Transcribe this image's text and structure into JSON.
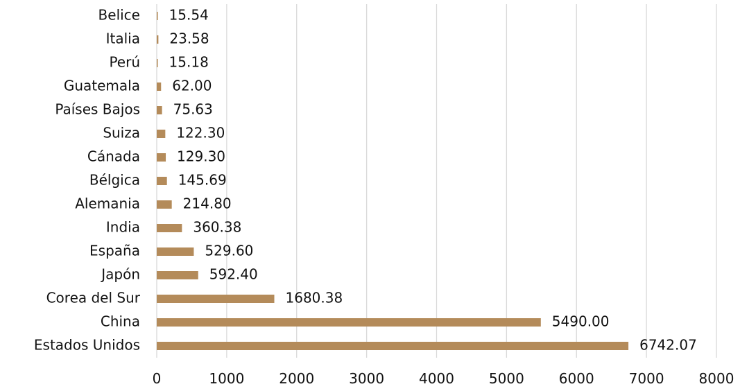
{
  "chart_data": {
    "type": "bar",
    "orientation": "horizontal",
    "title": "",
    "xlabel": "",
    "ylabel": "",
    "xlim": [
      0,
      8000
    ],
    "xticks": [
      0,
      1000,
      2000,
      3000,
      4000,
      5000,
      6000,
      7000,
      8000
    ],
    "grid": "vertical",
    "bar_color": "#b48b5a",
    "grid_color": "#d9d9d9",
    "categories": [
      "Belice",
      "Italia",
      "Perú",
      "Guatemala",
      "Países Bajos",
      "Suiza",
      "Cánada",
      "Bélgica",
      "Alemania",
      "India",
      "España",
      "Japón",
      "Corea del Sur",
      "China",
      "Estados Unidos"
    ],
    "values": [
      15.54,
      23.58,
      15.18,
      62.0,
      75.63,
      122.3,
      129.3,
      145.69,
      214.8,
      360.38,
      529.6,
      592.4,
      1680.38,
      5490.0,
      6742.07
    ],
    "value_labels": [
      "15.54",
      "23.58",
      "15.18",
      "62.00",
      "75.63",
      "122.30",
      "129.30",
      "145.69",
      "214.80",
      "360.38",
      "529.60",
      "592.40",
      "1680.38",
      "5490.00",
      "6742.07"
    ]
  }
}
